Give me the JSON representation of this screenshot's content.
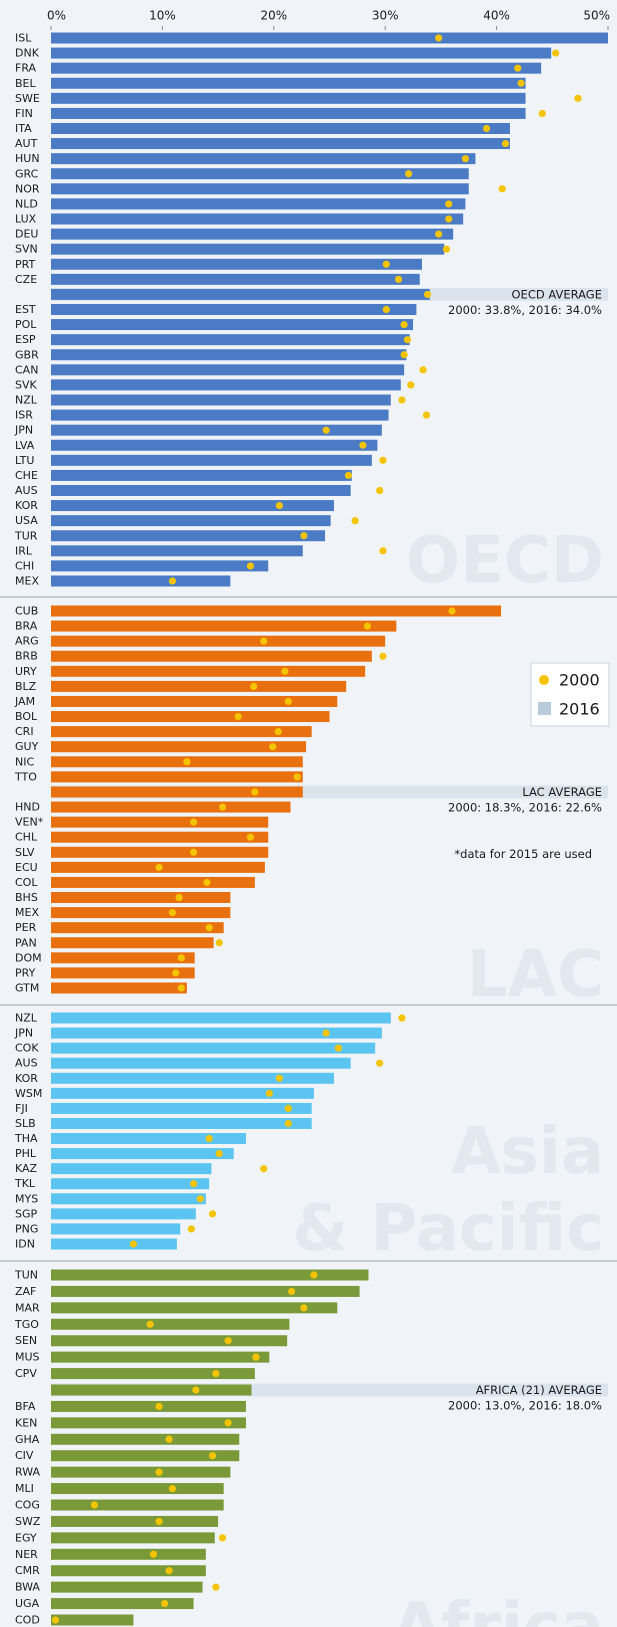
{
  "chart_data": [
    {
      "type": "bar",
      "title": "OECD",
      "xlim": [
        0,
        50
      ],
      "xticks": [
        {
          "value": 0,
          "label": "0%"
        },
        {
          "value": 10,
          "label": "10%"
        },
        {
          "value": 20,
          "label": "20%"
        },
        {
          "value": 30,
          "label": "30%"
        },
        {
          "value": 40,
          "label": "40%"
        },
        {
          "value": 50,
          "label": "50%"
        }
      ],
      "categories": [
        "ISL",
        "DNK",
        "FRA",
        "BEL",
        "SWE",
        "FIN",
        "ITA",
        "AUT",
        "HUN",
        "GRC",
        "NOR",
        "NLD",
        "LUX",
        "DEU",
        "SVN",
        "PRT",
        "CZE",
        null,
        "EST",
        "POL",
        "ESP",
        "GBR",
        "CAN",
        "SVK",
        "NZL",
        "ISR",
        "JPN",
        "LVA",
        "LTU",
        "CHE",
        "AUS",
        "KOR",
        "USA",
        "TUR",
        "IRL",
        "CHI",
        "MEX"
      ],
      "series": [
        {
          "kind": "dot",
          "color": "#f5c400",
          "values": [
            34.8,
            45.3,
            41.9,
            42.2,
            47.3,
            44.1,
            39.1,
            40.8,
            37.2,
            32.1,
            40.5,
            35.7,
            35.7,
            34.8,
            35.5,
            30.1,
            31.2,
            33.8,
            30.1,
            31.7,
            32.0,
            31.7,
            33.4,
            32.3,
            31.5,
            33.7,
            24.7,
            28.0,
            29.8,
            26.7,
            29.5,
            20.5,
            27.3,
            22.7,
            29.8,
            17.9,
            10.9
          ]
        },
        {
          "kind": "bar",
          "color": "#4a7bc4",
          "values": [
            50.0,
            44.9,
            44.0,
            42.6,
            42.6,
            42.6,
            41.2,
            41.2,
            38.1,
            37.5,
            37.5,
            37.2,
            37.0,
            36.1,
            35.3,
            33.3,
            33.1,
            34.0,
            32.8,
            32.5,
            32.2,
            31.9,
            31.7,
            31.4,
            30.5,
            30.3,
            29.7,
            29.3,
            28.8,
            27.0,
            26.9,
            25.4,
            25.1,
            24.6,
            22.6,
            19.5,
            16.1
          ]
        }
      ],
      "average_label": "OECD AVERAGE",
      "average_note": "2000: 33.8%, 2016: 34.0%"
    },
    {
      "type": "bar",
      "title": "LAC",
      "xlim": [
        0,
        50
      ],
      "categories": [
        "CUB",
        "BRA",
        "ARG",
        "BRB",
        "URY",
        "BLZ",
        "JAM",
        "BOL",
        "CRI",
        "GUY",
        "NIC",
        "TTO",
        null,
        "HND",
        "VEN*",
        "CHL",
        "SLV",
        "ECU",
        "COL",
        "BHS",
        "MEX",
        "PER",
        "PAN",
        "DOM",
        "PRY",
        "GTM"
      ],
      "series": [
        {
          "name": "2000",
          "kind": "dot",
          "color": "#f5c400",
          "values": [
            36.0,
            28.4,
            19.1,
            29.8,
            21.0,
            18.2,
            21.3,
            16.8,
            20.4,
            19.9,
            12.2,
            22.1,
            18.3,
            15.4,
            12.8,
            17.9,
            12.8,
            9.7,
            14.0,
            11.5,
            10.9,
            14.2,
            15.1,
            11.7,
            11.2,
            11.7
          ]
        },
        {
          "name": "2016",
          "kind": "bar",
          "color": "#e8700f",
          "values": [
            40.4,
            31.0,
            30.0,
            28.8,
            28.2,
            26.5,
            25.7,
            25.0,
            23.4,
            22.9,
            22.6,
            22.6,
            22.6,
            21.5,
            19.5,
            19.5,
            19.5,
            19.2,
            18.3,
            16.1,
            16.1,
            15.5,
            14.6,
            12.9,
            12.9,
            12.2
          ]
        }
      ],
      "legend_colors": [
        "#f5c400",
        "#b8ccdc"
      ],
      "average_label": "LAC AVERAGE",
      "average_note": "2000: 18.3%, 2016: 22.6%",
      "note": "*data for 2015 are used"
    },
    {
      "type": "bar",
      "title": [
        "Asia",
        "& Pacific"
      ],
      "xlim": [
        0,
        50
      ],
      "categories": [
        "NZL",
        "JPN",
        "COK",
        "AUS",
        "KOR",
        "WSM",
        "FJI",
        "SLB",
        "THA",
        "PHL",
        "KAZ",
        "TKL",
        "MYS",
        "SGP",
        "PNG",
        "IDN"
      ],
      "series": [
        {
          "kind": "dot",
          "color": "#f5c400",
          "values": [
            31.5,
            24.7,
            25.8,
            29.5,
            20.5,
            19.6,
            21.3,
            21.3,
            14.2,
            15.1,
            19.1,
            12.8,
            13.4,
            14.5,
            12.6,
            7.4
          ]
        },
        {
          "kind": "bar",
          "color": "#5bc4f0",
          "values": [
            30.5,
            29.7,
            29.1,
            26.9,
            25.4,
            23.6,
            23.4,
            23.4,
            17.5,
            16.4,
            14.4,
            14.2,
            13.9,
            13.0,
            11.6,
            11.3
          ]
        }
      ]
    },
    {
      "type": "bar",
      "title": "Africa",
      "xlim": [
        0,
        50
      ],
      "categories": [
        "TUN",
        "ZAF",
        "MAR",
        "TGO",
        "SEN",
        "MUS",
        "CPV",
        null,
        "BFA",
        "KEN",
        "GHA",
        "CIV",
        "RWA",
        "MLI",
        "COG",
        "SWZ",
        "EGY",
        "NER",
        "CMR",
        "BWA",
        "UGA",
        "COD"
      ],
      "series": [
        {
          "kind": "dot",
          "color": "#f5c400",
          "values": [
            23.6,
            21.6,
            22.7,
            8.9,
            15.9,
            18.4,
            14.8,
            13.0,
            9.7,
            15.9,
            10.6,
            14.5,
            9.7,
            10.9,
            3.9,
            9.7,
            15.4,
            9.2,
            10.6,
            14.8,
            10.2,
            0.4
          ]
        },
        {
          "kind": "bar",
          "color": "#7a9a3a",
          "values": [
            28.5,
            27.7,
            25.7,
            21.4,
            21.2,
            19.6,
            18.3,
            18.0,
            17.5,
            17.5,
            16.9,
            16.9,
            16.1,
            15.5,
            15.5,
            15.0,
            14.7,
            13.9,
            13.9,
            13.6,
            12.8,
            7.4
          ]
        }
      ],
      "average_label": "AFRICA (21) AVERAGE",
      "average_note": "2000: 13.0%, 2016: 18.0%"
    }
  ]
}
